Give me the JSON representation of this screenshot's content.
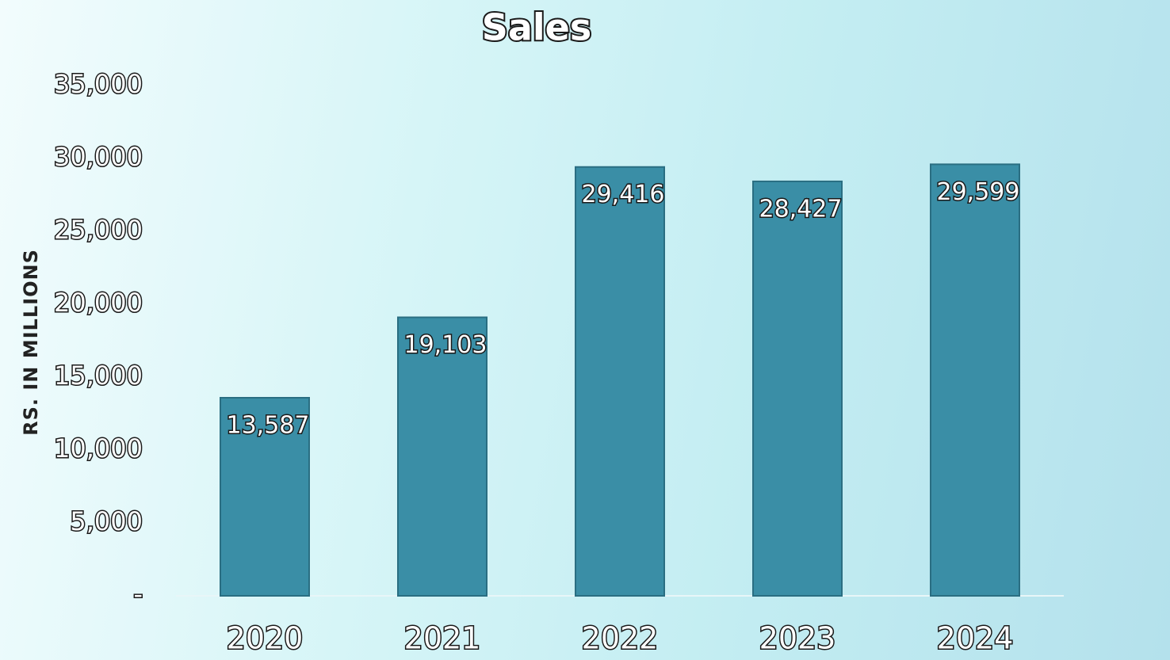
{
  "chart_data": {
    "type": "bar",
    "title": "Sales",
    "y_label": "RS. IN MILLIONS",
    "categories": [
      "2020",
      "2021",
      "2022",
      "2023",
      "2024"
    ],
    "values": [
      13587,
      19103,
      29416,
      28427,
      29599
    ],
    "value_labels": [
      "13,587",
      "19,103",
      "29,416",
      "28,427",
      "29,599"
    ],
    "color": "#3a8ea6",
    "ylim": [
      0,
      35000
    ],
    "yticks": [
      {
        "value": 0,
        "label": "-"
      },
      {
        "value": 5000,
        "label": "5,000"
      },
      {
        "value": 10000,
        "label": "10,000"
      },
      {
        "value": 15000,
        "label": "15,000"
      },
      {
        "value": 20000,
        "label": "20,000"
      },
      {
        "value": 25000,
        "label": "25,000"
      },
      {
        "value": 30000,
        "label": "30,000"
      },
      {
        "value": 35000,
        "label": "35,000"
      }
    ],
    "grid": false
  }
}
